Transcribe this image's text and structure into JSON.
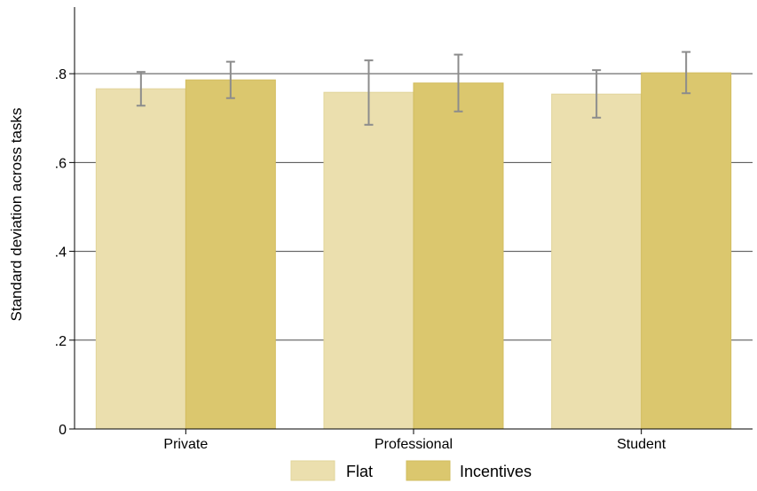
{
  "chart_data": {
    "type": "bar",
    "title": "",
    "xlabel": "",
    "ylabel": "Standard deviation across tasks",
    "categories": [
      "Private",
      "Professional",
      "Student"
    ],
    "series": [
      {
        "name": "Flat",
        "color": "#ebdfae",
        "values": [
          0.766,
          0.758,
          0.754
        ],
        "ci_low": [
          0.728,
          0.685,
          0.701
        ],
        "ci_high": [
          0.804,
          0.83,
          0.808
        ]
      },
      {
        "name": "Incentives",
        "color": "#dbc76e",
        "values": [
          0.786,
          0.779,
          0.802
        ],
        "ci_low": [
          0.745,
          0.715,
          0.756
        ],
        "ci_high": [
          0.827,
          0.843,
          0.849
        ]
      }
    ],
    "ylim": [
      0,
      0.95
    ],
    "yticks": [
      0,
      0.2,
      0.4,
      0.6,
      0.8
    ],
    "ytick_labels": [
      "0",
      ".2",
      ".4",
      ".6",
      ".8"
    ],
    "grid": true,
    "legend_position": "bottom",
    "errorbar_color": "#8c8c8c"
  }
}
